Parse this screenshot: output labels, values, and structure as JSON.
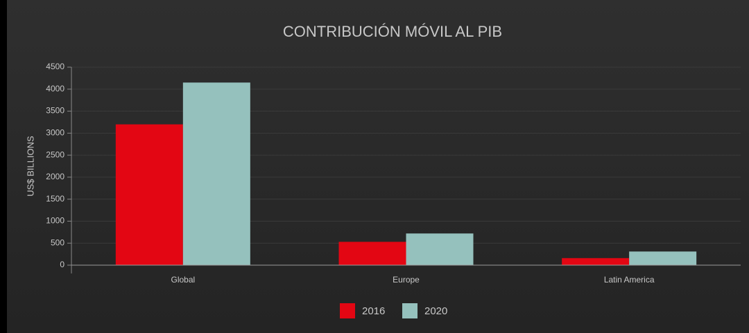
{
  "chart_data": {
    "type": "bar",
    "title": "CONTRIBUCIÓN MÓVIL AL PIB",
    "y_label": "US$ BILLIONS",
    "categories": [
      "Global",
      "Europe",
      "Latin America"
    ],
    "series": [
      {
        "name": "2016",
        "color": "#e30613",
        "values": [
          3200,
          530,
          160
        ]
      },
      {
        "name": "2020",
        "color": "#95c1bd",
        "values": [
          4150,
          720,
          310
        ]
      }
    ],
    "ylim": [
      0,
      4500
    ],
    "yticks": [
      0,
      500,
      1000,
      1500,
      2000,
      2500,
      3000,
      3500,
      4000,
      4500
    ],
    "grid": true
  }
}
